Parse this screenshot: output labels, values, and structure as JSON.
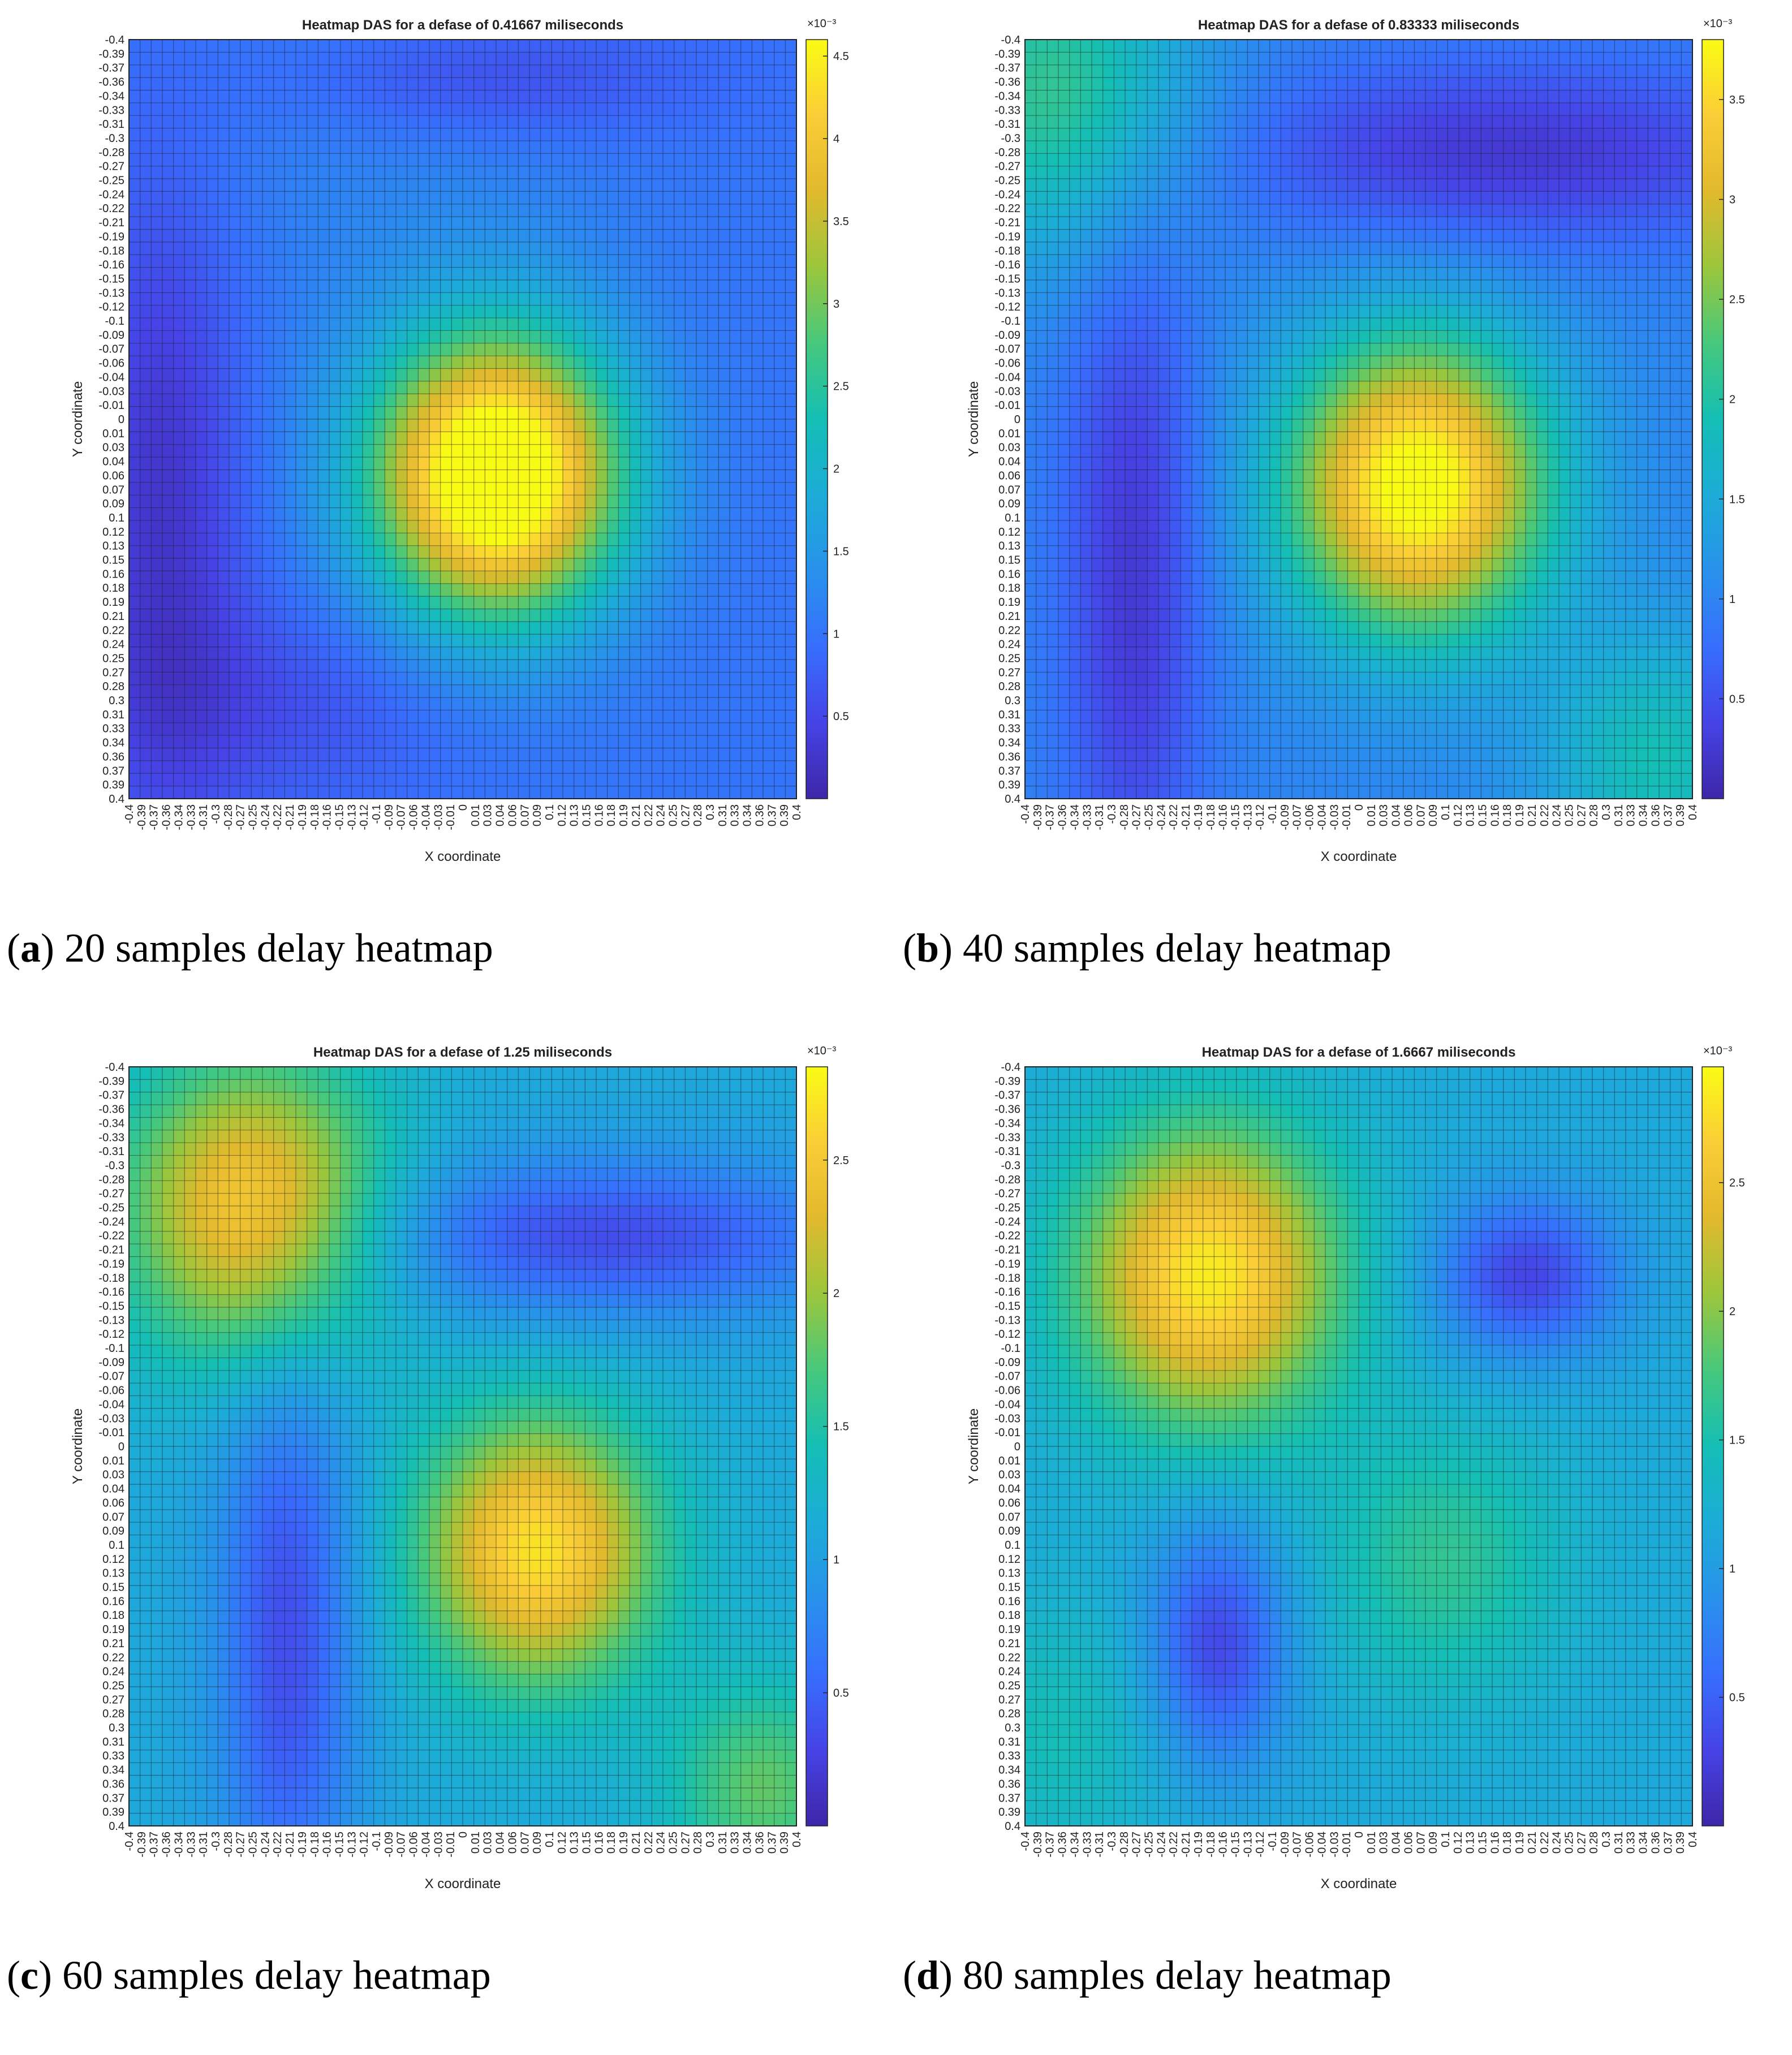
{
  "chart_data": [
    {
      "type": "heatmap",
      "panel_id": "a",
      "title": "Heatmap DAS for a defase of 0.41667 miliseconds",
      "xlabel": "X coordinate",
      "ylabel": "Y coordinate",
      "colorbar_exponent": "×10⁻³",
      "colorbar_ticks": [
        0.5,
        1,
        1.5,
        2,
        2.5,
        3,
        3.5,
        4,
        4.5
      ],
      "clim": [
        0.0,
        4.6
      ],
      "blobs": [
        {
          "x": 0.04,
          "y": 0.06,
          "amp": 4.4,
          "sigma": 0.105
        },
        {
          "x": -0.08,
          "y": -0.34,
          "amp": 0.25,
          "sigma": 0.2
        }
      ],
      "base": 1.0,
      "dips": [
        {
          "x": -0.36,
          "y": 0.08,
          "amp": -0.75,
          "sx": 0.07,
          "sy": 0.25
        },
        {
          "x": 0.02,
          "y": -0.36,
          "amp": -0.55,
          "sx": 0.18,
          "sy": 0.05
        },
        {
          "x": -0.22,
          "y": 0.3,
          "amp": -0.4,
          "sx": 0.15,
          "sy": 0.08
        }
      ]
    },
    {
      "type": "heatmap",
      "panel_id": "b",
      "title": "Heatmap DAS for a defase of 0.83333 miliseconds",
      "xlabel": "X coordinate",
      "ylabel": "Y coordinate",
      "colorbar_exponent": "×10⁻³",
      "colorbar_ticks": [
        0.5,
        1,
        1.5,
        2,
        2.5,
        3,
        3.5
      ],
      "clim": [
        0.0,
        3.8
      ],
      "blobs": [
        {
          "x": 0.07,
          "y": 0.07,
          "amp": 3.0,
          "sigma": 0.11
        },
        {
          "x": -0.36,
          "y": -0.34,
          "amp": 1.2,
          "sigma": 0.12
        },
        {
          "x": 0.36,
          "y": 0.36,
          "amp": 0.9,
          "sigma": 0.1
        }
      ],
      "base": 1.0,
      "dips": [
        {
          "x": -0.27,
          "y": 0.16,
          "amp": -0.75,
          "sx": 0.06,
          "sy": 0.26
        },
        {
          "x": 0.18,
          "y": -0.28,
          "amp": -0.75,
          "sx": 0.25,
          "sy": 0.07
        }
      ]
    },
    {
      "type": "heatmap",
      "panel_id": "c",
      "title": "Heatmap DAS for a defase of 1.25 miliseconds",
      "xlabel": "X coordinate",
      "ylabel": "Y coordinate",
      "colorbar_exponent": "×10⁻³",
      "colorbar_ticks": [
        0.5,
        1,
        1.5,
        2,
        2.5
      ],
      "clim": [
        0.0,
        2.85
      ],
      "blobs": [
        {
          "x": -0.25,
          "y": -0.25,
          "amp": 1.5,
          "sigma": 0.11
        },
        {
          "x": 0.09,
          "y": 0.11,
          "amp": 1.6,
          "sigma": 0.1
        },
        {
          "x": 0.36,
          "y": 0.36,
          "amp": 0.7,
          "sigma": 0.08
        }
      ],
      "base": 1.1,
      "dips": [
        {
          "x": -0.21,
          "y": 0.2,
          "amp": -0.75,
          "sx": 0.06,
          "sy": 0.22
        },
        {
          "x": 0.17,
          "y": -0.22,
          "amp": -0.75,
          "sx": 0.22,
          "sy": 0.06
        }
      ]
    },
    {
      "type": "heatmap",
      "panel_id": "d",
      "title": "Heatmap DAS for a defase of 1.6667 miliseconds",
      "xlabel": "X coordinate",
      "ylabel": "Y coordinate",
      "colorbar_exponent": "×10⁻³",
      "colorbar_ticks": [
        0.5,
        1,
        1.5,
        2,
        2.5
      ],
      "clim": [
        0.0,
        2.95
      ],
      "blobs": [
        {
          "x": -0.18,
          "y": -0.18,
          "amp": 1.7,
          "sigma": 0.11
        },
        {
          "x": 0.1,
          "y": 0.12,
          "amp": 0.5,
          "sigma": 0.1
        },
        {
          "x": -0.36,
          "y": 0.3,
          "amp": 0.3,
          "sigma": 0.1
        }
      ],
      "base": 1.15,
      "dips": [
        {
          "x": -0.17,
          "y": 0.21,
          "amp": -0.85,
          "sx": 0.06,
          "sy": 0.09
        },
        {
          "x": 0.2,
          "y": -0.18,
          "amp": -0.85,
          "sx": 0.08,
          "sy": 0.06
        }
      ]
    }
  ],
  "axis_ticks": [
    "-0.4",
    "-0.39",
    "-0.37",
    "-0.36",
    "-0.34",
    "-0.33",
    "-0.31",
    "-0.3",
    "-0.28",
    "-0.27",
    "-0.25",
    "-0.24",
    "-0.22",
    "-0.21",
    "-0.19",
    "-0.18",
    "-0.16",
    "-0.15",
    "-0.13",
    "-0.12",
    "-0.1",
    "-0.09",
    "-0.07",
    "-0.06",
    "-0.04",
    "-0.03",
    "-0.01",
    "0",
    "0.01",
    "0.03",
    "0.04",
    "0.06",
    "0.07",
    "0.09",
    "0.1",
    "0.12",
    "0.13",
    "0.15",
    "0.16",
    "0.18",
    "0.19",
    "0.21",
    "0.22",
    "0.24",
    "0.25",
    "0.27",
    "0.28",
    "0.3",
    "0.31",
    "0.33",
    "0.34",
    "0.36",
    "0.37",
    "0.39",
    "0.4"
  ],
  "captions": [
    {
      "label": "a",
      "text": " 20 samples delay heatmap"
    },
    {
      "label": "b",
      "text": " 40 samples delay heatmap"
    },
    {
      "label": "c",
      "text": " 60 samples delay heatmap"
    },
    {
      "label": "d",
      "text": " 80 samples delay heatmap"
    }
  ]
}
